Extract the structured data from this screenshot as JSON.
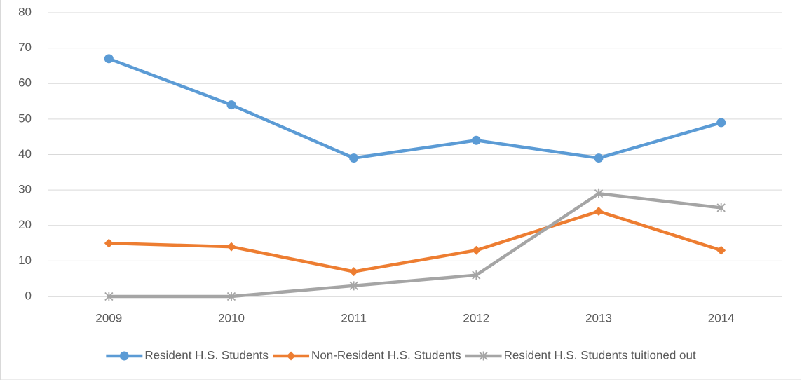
{
  "chart_data": {
    "type": "line",
    "categories": [
      "2009",
      "2010",
      "2011",
      "2012",
      "2013",
      "2014"
    ],
    "series": [
      {
        "name": "Resident H.S. Students",
        "color": "#5b9bd5",
        "marker": "circle",
        "values": [
          67,
          54,
          39,
          44,
          39,
          49
        ]
      },
      {
        "name": "Non-Resident H.S. Students",
        "color": "#ed7d31",
        "marker": "diamond",
        "values": [
          15,
          14,
          7,
          13,
          24,
          13
        ]
      },
      {
        "name": "Resident H.S. Students tuitioned out",
        "color": "#a5a5a5",
        "marker": "star",
        "values": [
          0,
          0,
          3,
          6,
          29,
          25
        ]
      }
    ],
    "ylim": [
      0,
      80
    ],
    "yticks": [
      0,
      10,
      20,
      30,
      40,
      50,
      60,
      70,
      80
    ],
    "grid": true,
    "legend": "bottom"
  }
}
